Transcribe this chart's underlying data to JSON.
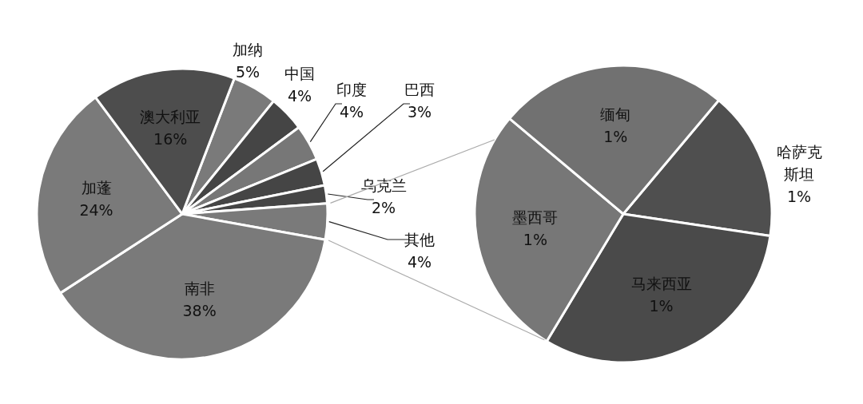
{
  "chart_data": [
    {
      "type": "pie",
      "categories": [
        "加纳",
        "中国",
        "印度",
        "巴西",
        "乌克兰",
        "其他",
        "南非",
        "加蓬",
        "澳大利亚"
      ],
      "values": [
        5,
        4,
        4,
        3,
        2,
        4,
        38,
        24,
        16
      ],
      "value_labels": [
        "5%",
        "4%",
        "4%",
        "3%",
        "2%",
        "4%",
        "38%",
        "24%",
        "16%"
      ],
      "colors": [
        "#7a7a7a",
        "#454545",
        "#777777",
        "#454545",
        "#454545",
        "#7a7a7a",
        "#7a7a7a",
        "#7a7a7a",
        "#4d4d4d"
      ]
    },
    {
      "type": "pie",
      "categories": [
        "哈萨克斯坦",
        "马来西亚",
        "墨西哥",
        "缅甸"
      ],
      "values": [
        0.65,
        1.25,
        1.1,
        1.0
      ],
      "value_labels": [
        "1%",
        "1%",
        "1%",
        "1%"
      ],
      "colors": [
        "#4f4f4f",
        "#4a4a4a",
        "#777777",
        "#717171"
      ]
    }
  ]
}
